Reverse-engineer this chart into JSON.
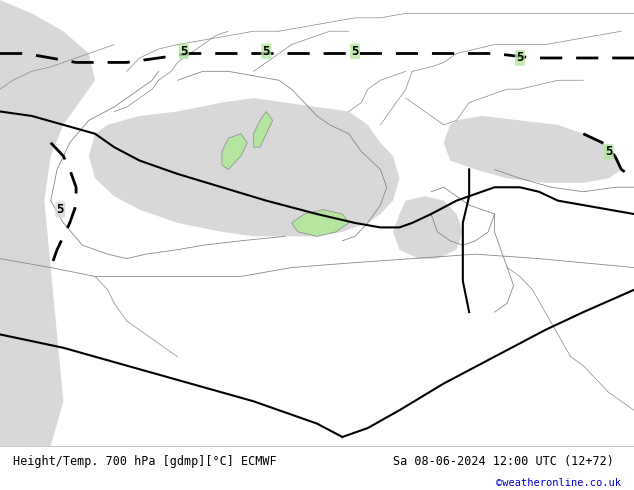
{
  "title_left": "Height/Temp. 700 hPa [gdmp][°C] ECMWF",
  "title_right": "Sa 08-06-2024 12:00 UTC (12+72)",
  "credit": "©weatheronline.co.uk",
  "background_land_green": "#b5e6a0",
  "background_sea_gray": "#d8d8d8",
  "background_outer": "#d8d8d8",
  "coast_color": "#888888",
  "border_color": "#888888",
  "contour_solid_color": "#000000",
  "contour_dash_color": "#000000",
  "label_5": "5",
  "bottom_bar_color": "#ffffff",
  "credit_color": "#0000cc",
  "fig_width": 6.34,
  "fig_height": 4.9,
  "dpi": 100
}
